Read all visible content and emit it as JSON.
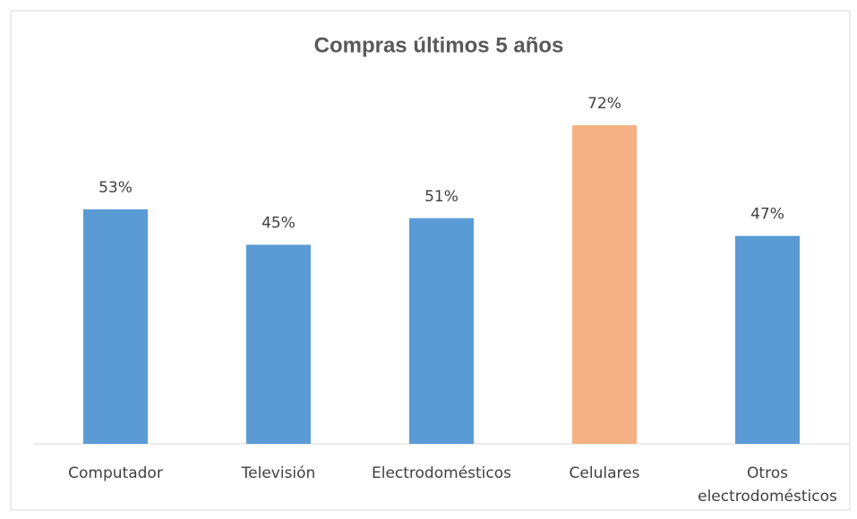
{
  "chart_data": {
    "type": "bar",
    "title": "Compras últimos 5 años",
    "categories": [
      "Computador",
      "Televisión",
      "Electrodomésticos",
      "Celulares",
      "Otros electrodomésticos"
    ],
    "values": [
      53,
      45,
      51,
      72,
      47
    ],
    "value_labels": [
      "53%",
      "45%",
      "51%",
      "72%",
      "47%"
    ],
    "colors": [
      "#5b9bd5",
      "#5b9bd5",
      "#5b9bd5",
      "#f4b183",
      "#5b9bd5"
    ]
  }
}
